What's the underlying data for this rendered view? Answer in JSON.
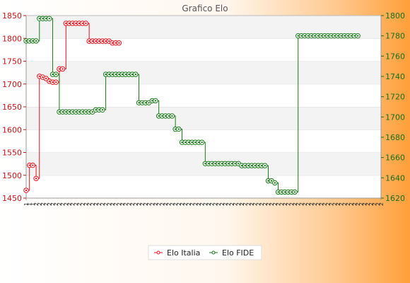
{
  "chart_data": {
    "type": "line",
    "title": "Grafico Elo",
    "legend_position": "bottom",
    "grid": true,
    "y_left": {
      "ylim": [
        1450,
        1850
      ],
      "ticks": [
        1450,
        1500,
        1550,
        1600,
        1650,
        1700,
        1750,
        1800,
        1850
      ]
    },
    "y_right": {
      "ylim": [
        1620,
        1800
      ],
      "ticks": [
        1620,
        1640,
        1660,
        1680,
        1700,
        1720,
        1740,
        1760,
        1780,
        1800
      ]
    },
    "x_labels": [
      "1",
      "1",
      "1",
      "2",
      "2",
      "2",
      "2",
      "2",
      "2",
      "2",
      "2",
      "2",
      "2",
      "2",
      "2",
      "2",
      "2",
      "2",
      "2",
      "2",
      "2",
      "2",
      "2",
      "2",
      "2",
      "2",
      "2",
      "2",
      "2",
      "2",
      "2",
      "2",
      "2",
      "2",
      "2",
      "2",
      "2",
      "2",
      "2",
      "2",
      "2",
      "2",
      "2",
      "2",
      "2",
      "2",
      "2",
      "2",
      "2",
      "2",
      "2",
      "2",
      "2",
      "2",
      "2",
      "2",
      "2",
      "2",
      "2",
      "2",
      "2",
      "2",
      "2",
      "2",
      "2",
      "2",
      "2",
      "2",
      "2",
      "2",
      "2",
      "2",
      "2",
      "2",
      "2",
      "2",
      "2",
      "2",
      "2",
      "2",
      "2",
      "2",
      "2",
      "2",
      "2",
      "2",
      "2",
      "2",
      "2",
      "2",
      "2",
      "2",
      "2",
      "2",
      "2",
      "2",
      "2",
      "2",
      "2",
      "2",
      "2",
      "2",
      "2",
      "2",
      "2",
      "2",
      "2",
      "2"
    ],
    "series": [
      {
        "name": "Elo Italia",
        "color": "#e8101a",
        "axis": "left",
        "values": [
          1467,
          1522,
          1522,
          1493,
          1717,
          1715,
          1712,
          1706,
          1704,
          1704,
          1733,
          1733,
          1833,
          1833,
          1833,
          1833,
          1833,
          1833,
          1833,
          1794,
          1794,
          1794,
          1794,
          1794,
          1794,
          1794,
          1790,
          1790,
          1790
        ]
      },
      {
        "name": "Elo FIDE",
        "color": "#1a7a1a",
        "axis": "right",
        "values": [
          1775,
          1775,
          1775,
          1775,
          1797,
          1797,
          1797,
          1797,
          1742,
          1742,
          1705,
          1705,
          1705,
          1705,
          1705,
          1705,
          1705,
          1705,
          1705,
          1705,
          1705,
          1707,
          1707,
          1707,
          1742,
          1742,
          1742,
          1742,
          1742,
          1742,
          1742,
          1742,
          1742,
          1742,
          1714,
          1714,
          1714,
          1714,
          1716,
          1716,
          1701,
          1701,
          1701,
          1701,
          1701,
          1688,
          1688,
          1675,
          1675,
          1675,
          1675,
          1675,
          1675,
          1675,
          1654,
          1654,
          1654,
          1654,
          1654,
          1654,
          1654,
          1654,
          1654,
          1654,
          1654,
          1652,
          1652,
          1652,
          1652,
          1652,
          1652,
          1652,
          1652,
          1637,
          1637,
          1635,
          1626,
          1626,
          1626,
          1626,
          1626,
          1626,
          1780,
          1780,
          1780,
          1780,
          1780,
          1780,
          1780,
          1780,
          1780,
          1780,
          1780,
          1780,
          1780,
          1780,
          1780,
          1780,
          1780,
          1780,
          1780
        ]
      }
    ]
  }
}
